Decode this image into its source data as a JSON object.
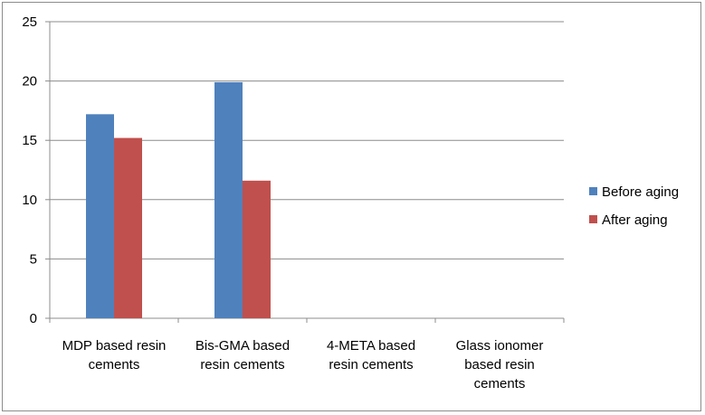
{
  "chart_data": {
    "type": "bar",
    "title": "",
    "xlabel": "",
    "ylabel": "",
    "ylim": [
      0,
      25
    ],
    "yticks": [
      0,
      5,
      10,
      15,
      20,
      25
    ],
    "grid": true,
    "legend_position": "right",
    "categories": [
      [
        "MDP based resin",
        "cements"
      ],
      [
        "Bis-GMA based",
        "resin cements"
      ],
      [
        "4-META based",
        "resin cements"
      ],
      [
        "Glass ionomer",
        "based resin",
        "cements"
      ]
    ],
    "series": [
      {
        "name": "Before aging",
        "color": "#4f81bd",
        "values": [
          17.2,
          19.9,
          null,
          null
        ]
      },
      {
        "name": "After aging",
        "color": "#c0504d",
        "values": [
          15.2,
          11.6,
          null,
          null
        ]
      }
    ]
  }
}
